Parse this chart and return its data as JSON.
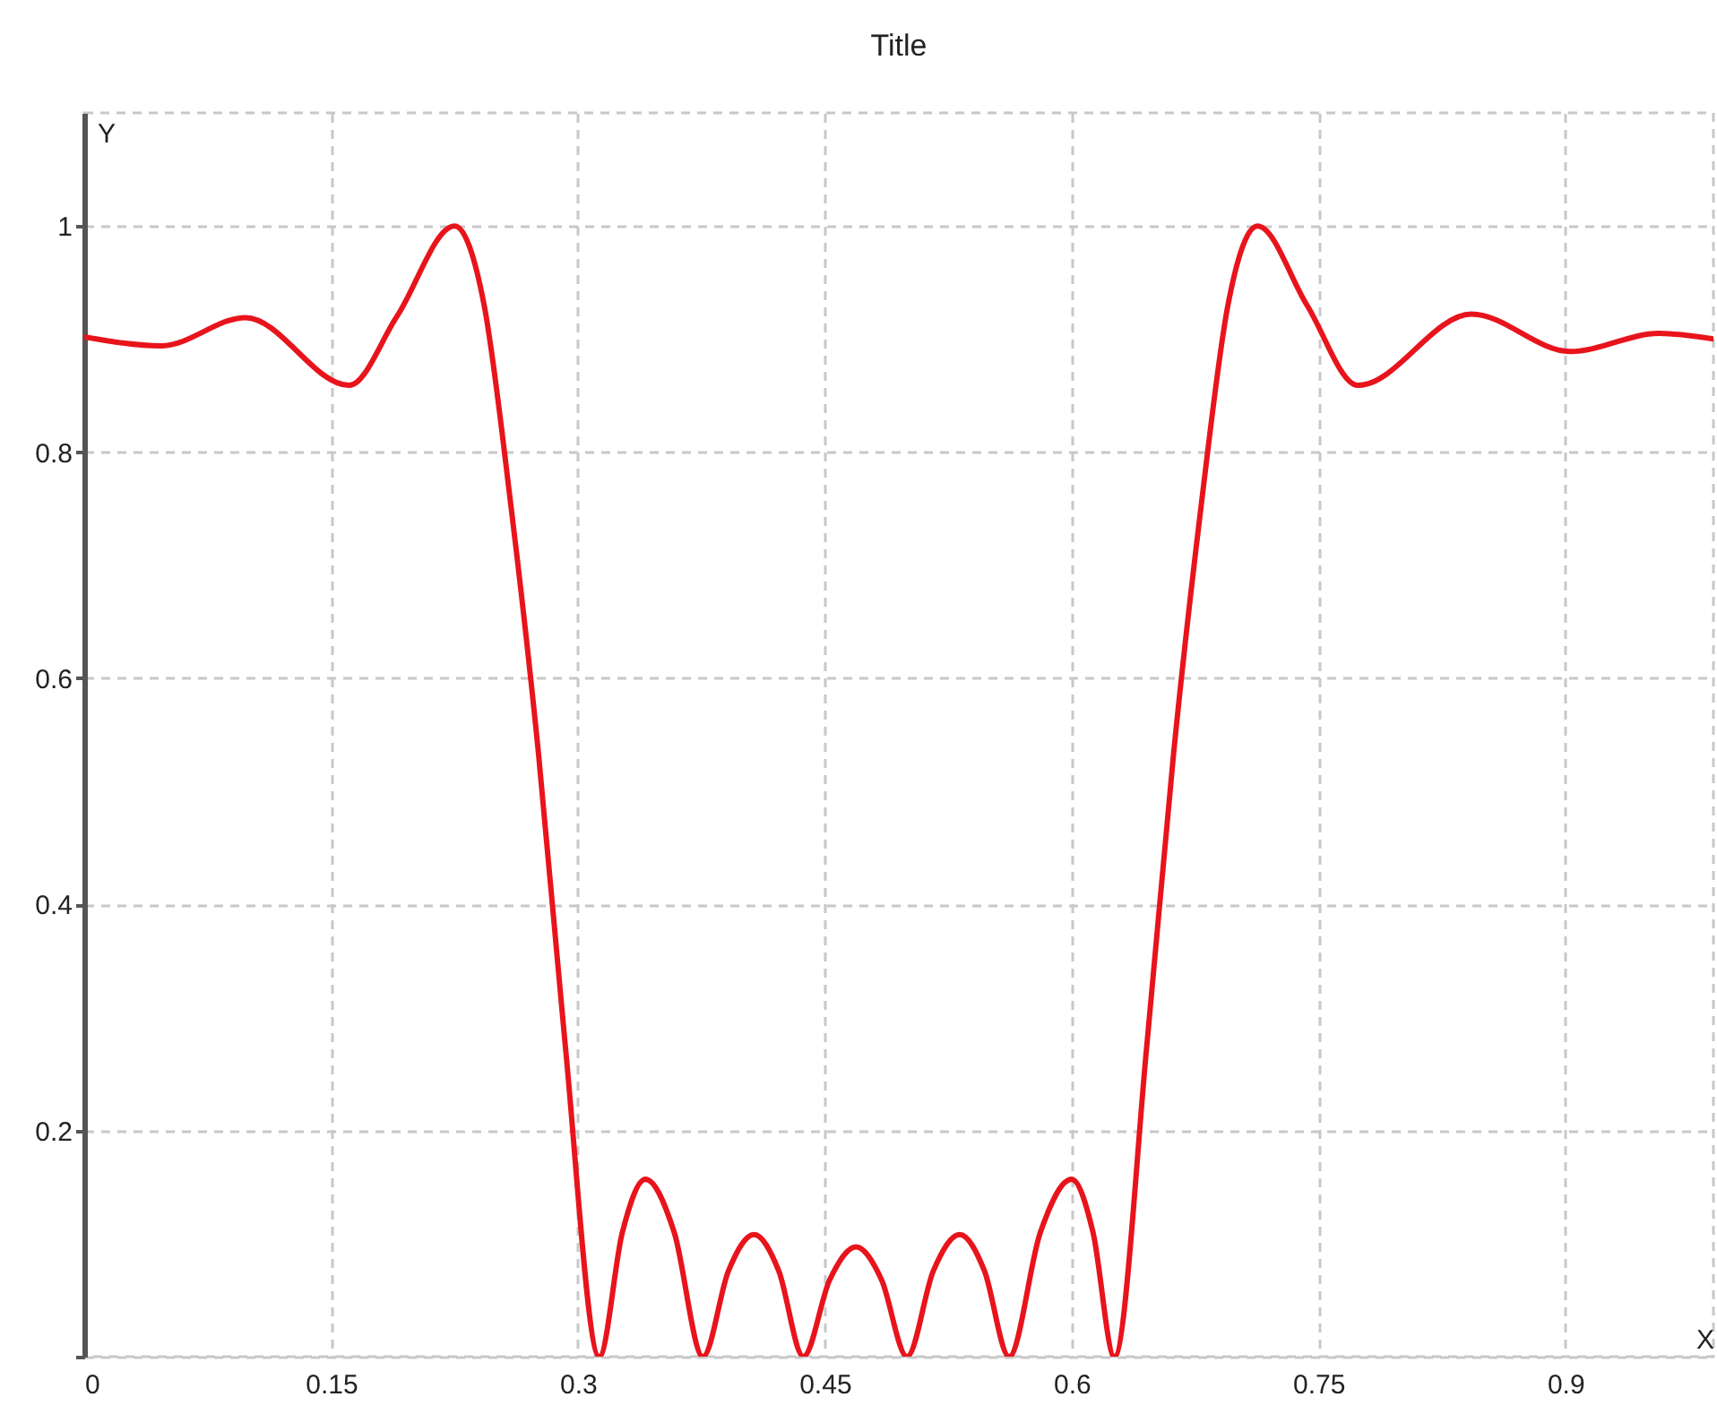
{
  "chart_data": {
    "type": "line",
    "title": "Title",
    "xlabel": "X",
    "ylabel": "Y",
    "xlim": [
      0,
      0.99
    ],
    "ylim": [
      0,
      1.1
    ],
    "xticks": [
      0,
      0.15,
      0.3,
      0.45,
      0.6,
      0.75,
      0.9
    ],
    "yticks": [
      {
        "value": 0,
        "label": null
      },
      0.2,
      0.4,
      0.6,
      0.8,
      1
    ],
    "grid": true,
    "line_style": "solid",
    "marker": "none",
    "series": [
      {
        "color": "#e8141c",
        "x": [
          0,
          0.047,
          0.098,
          0.161,
          0.19,
          0.225,
          0.243,
          0.259,
          0.276,
          0.292,
          0.313,
          0.327,
          0.341,
          0.3585,
          0.376,
          0.3915,
          0.407,
          0.422,
          0.437,
          0.453,
          0.469,
          0.4845,
          0.5,
          0.516,
          0.532,
          0.547,
          0.562,
          0.581,
          0.6,
          0.613,
          0.626,
          0.646,
          0.662,
          0.679,
          0.695,
          0.713,
          0.743,
          0.774,
          0.843,
          0.903,
          0.957,
          0.99
        ],
        "values": [
          0.902,
          0.894,
          0.919,
          0.859,
          0.92,
          1.0,
          0.93,
          0.756,
          0.534,
          0.28,
          0,
          0.11,
          0.157,
          0.11,
          0,
          0.076,
          0.108,
          0.076,
          0,
          0.068,
          0.097,
          0.068,
          0,
          0.076,
          0.108,
          0.076,
          0,
          0.11,
          0.157,
          0.11,
          0,
          0.28,
          0.534,
          0.756,
          0.93,
          1.0,
          0.93,
          0.859,
          0.922,
          0.889,
          0.905,
          0.9
        ]
      }
    ]
  }
}
